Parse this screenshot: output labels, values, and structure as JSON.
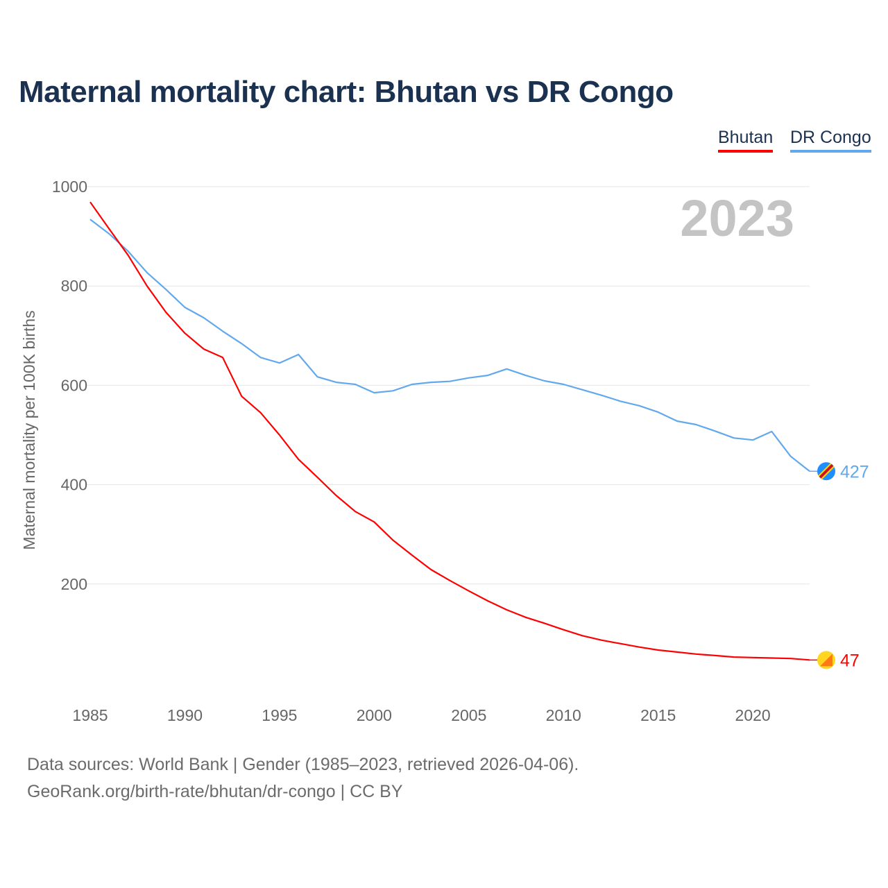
{
  "title": "Maternal mortality chart: Bhutan vs DR Congo",
  "legend": [
    {
      "label": "Bhutan",
      "color": "#ff0000"
    },
    {
      "label": "DR Congo",
      "color": "#62a8ec"
    }
  ],
  "footer": {
    "line1": "Data sources: World Bank | Gender (1985–2023, retrieved 2026-04-06).",
    "line2": "GeoRank.org/birth-rate/bhutan/dr-congo | CC BY"
  },
  "chart_data": {
    "type": "line",
    "title": "Maternal mortality chart: Bhutan vs DR Congo",
    "ylabel": "Maternal mortality per 100K births",
    "xlabel": "",
    "year_watermark": "2023",
    "xlim": [
      1985,
      2023
    ],
    "ylim": [
      0,
      1000
    ],
    "x_ticks": [
      "1985",
      "1990",
      "1995",
      "2000",
      "2005",
      "2010",
      "2015",
      "2020"
    ],
    "y_ticks": [
      "200",
      "400",
      "600",
      "800",
      "1000"
    ],
    "grid": true,
    "legend_position": "top-right",
    "x": [
      1985,
      1986,
      1987,
      1988,
      1989,
      1990,
      1991,
      1992,
      1993,
      1994,
      1995,
      1996,
      1997,
      1998,
      1999,
      2000,
      2001,
      2002,
      2003,
      2004,
      2005,
      2006,
      2007,
      2008,
      2009,
      2010,
      2011,
      2012,
      2013,
      2014,
      2015,
      2016,
      2017,
      2018,
      2019,
      2020,
      2021,
      2022,
      2023
    ],
    "series": [
      {
        "name": "Bhutan",
        "color": "#ff0000",
        "end_label": "47",
        "flag": "bhutan-flag",
        "values": [
          969,
          915,
          862,
          800,
          747,
          705,
          673,
          656,
          578,
          545,
          500,
          451,
          415,
          378,
          346,
          325,
          288,
          258,
          229,
          207,
          186,
          166,
          148,
          133,
          121,
          108,
          96,
          87,
          80,
          73,
          67,
          63,
          59,
          56,
          53,
          52,
          51,
          50,
          47
        ]
      },
      {
        "name": "DR Congo",
        "color": "#62a8ec",
        "end_label": "427",
        "flag": "dr-congo-flag",
        "values": [
          934,
          905,
          870,
          827,
          793,
          757,
          736,
          709,
          684,
          656,
          645,
          662,
          617,
          606,
          602,
          585,
          589,
          602,
          606,
          608,
          615,
          620,
          633,
          620,
          609,
          602,
          591,
          580,
          568,
          559,
          546,
          528,
          521,
          508,
          494,
          490,
          507,
          457,
          427
        ]
      }
    ]
  }
}
